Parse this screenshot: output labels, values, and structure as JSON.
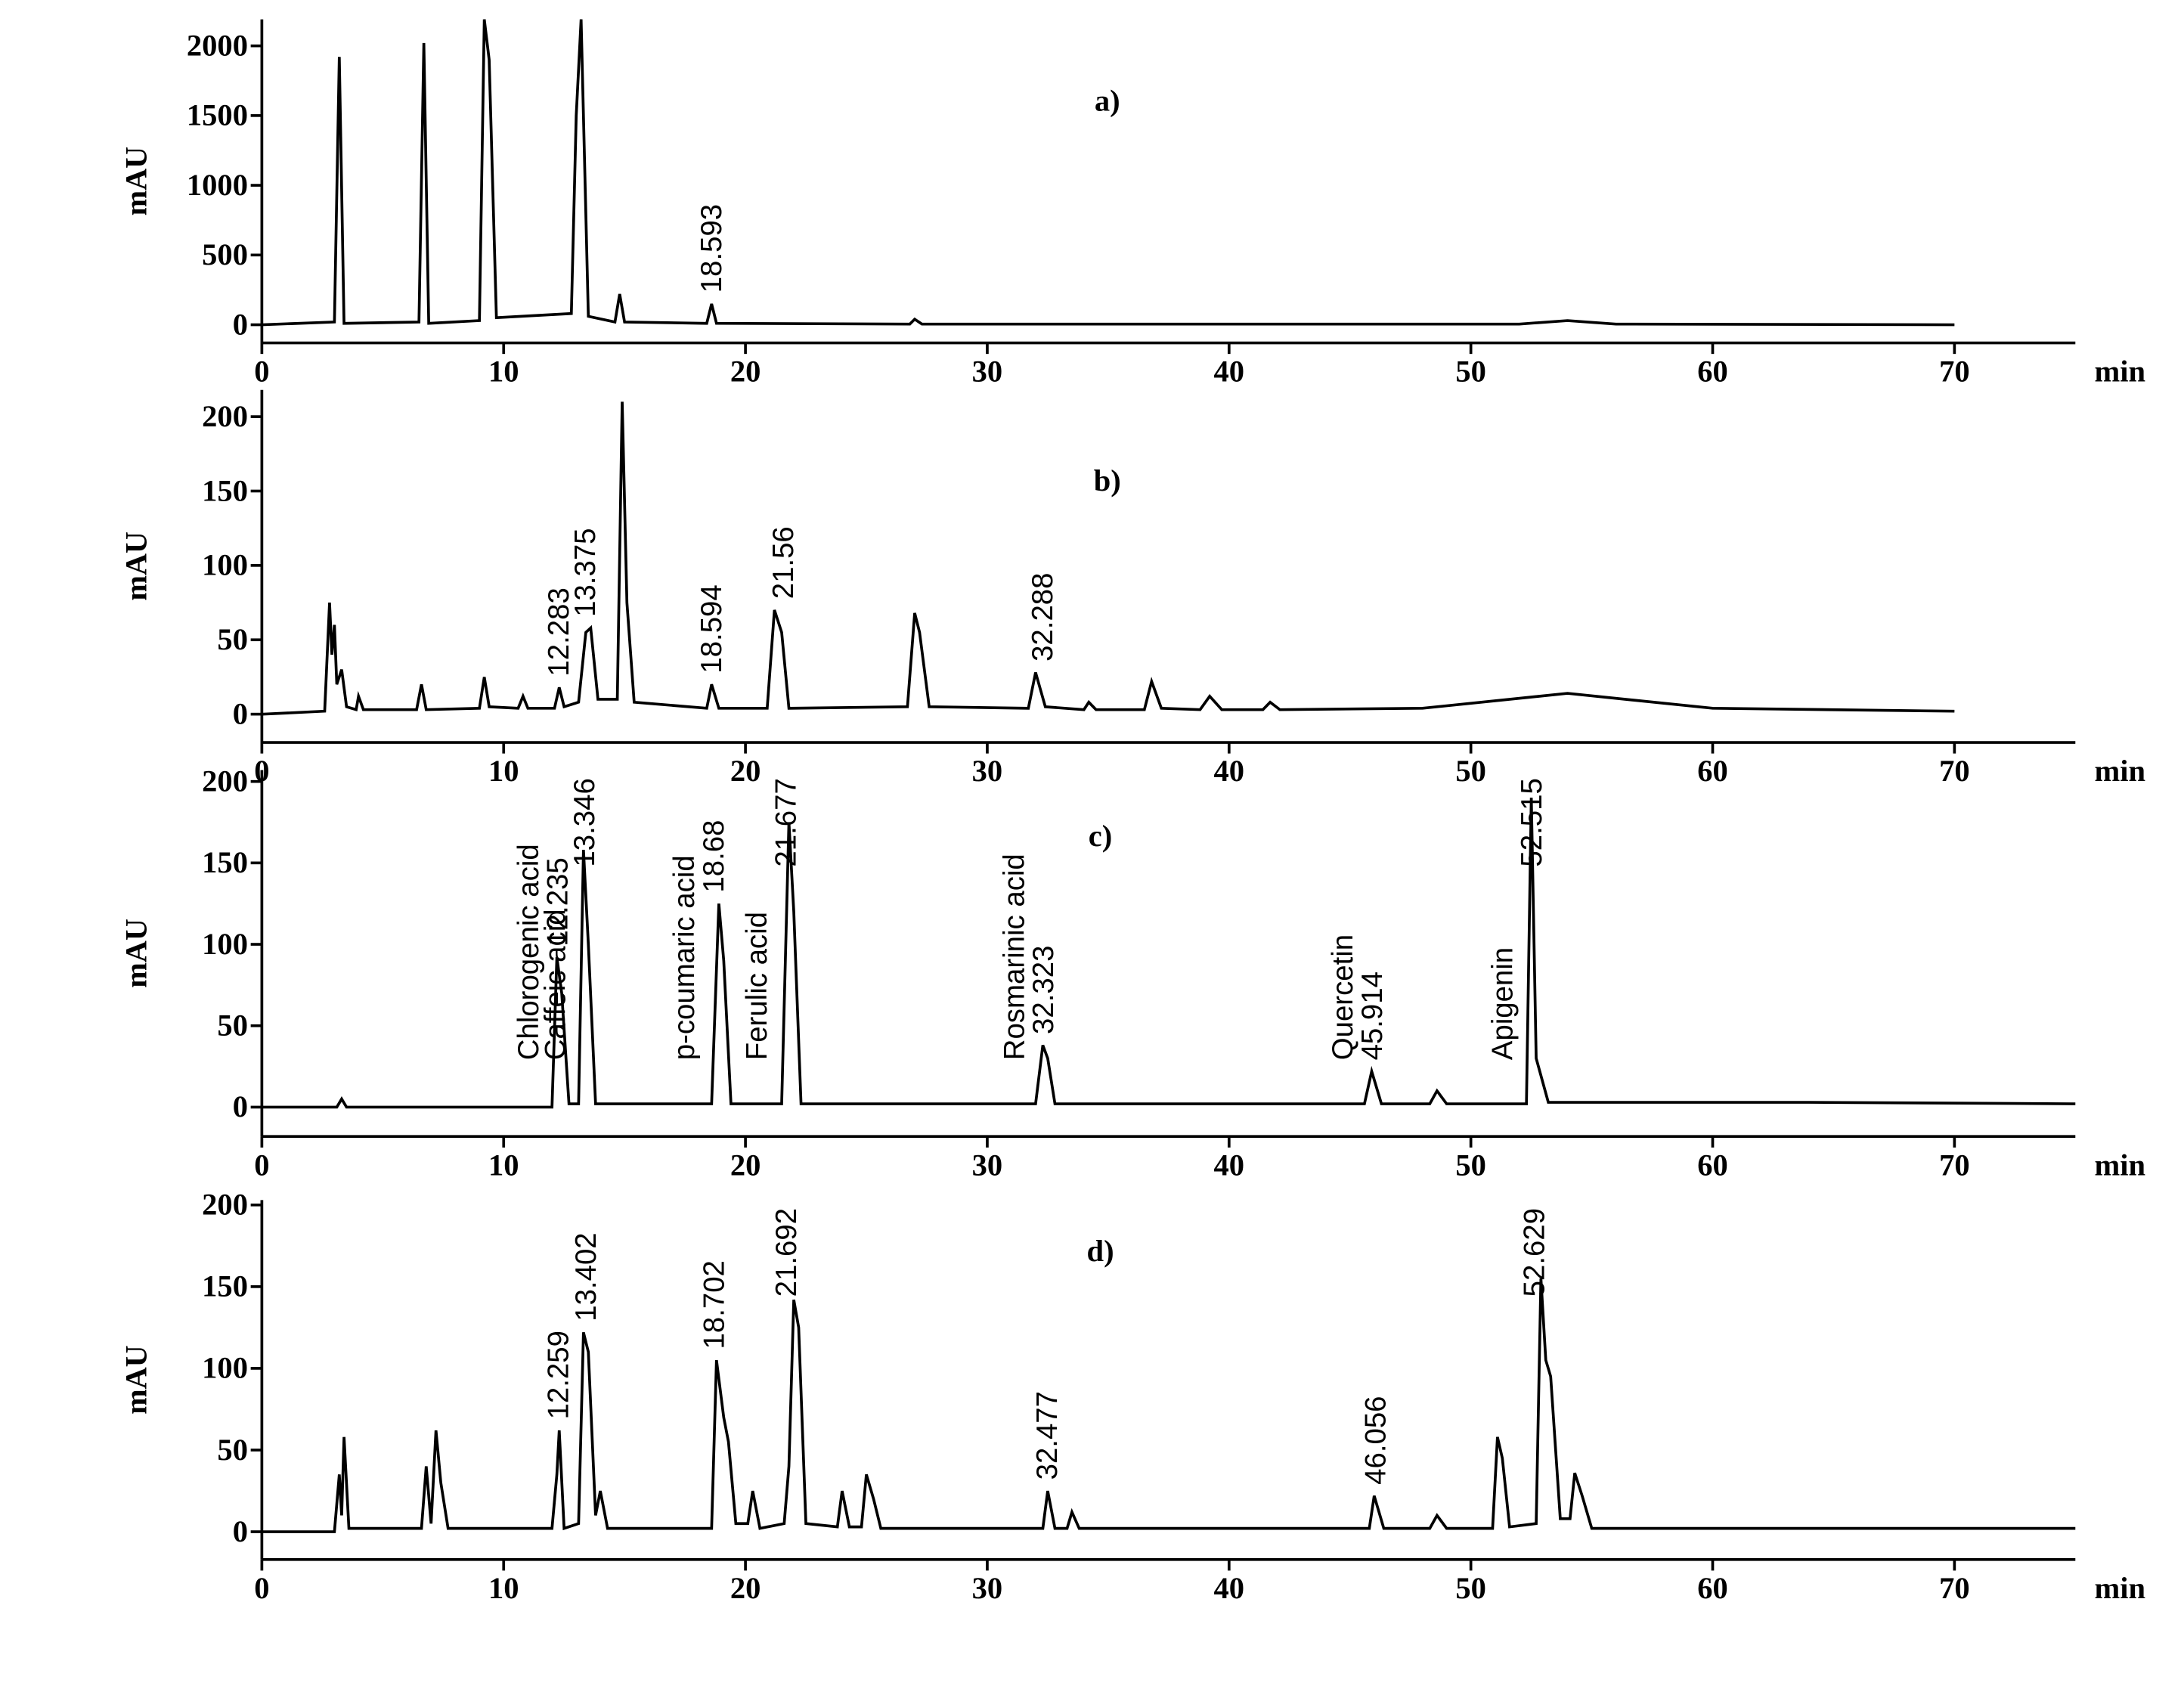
{
  "chart_data": [
    {
      "type": "line",
      "title": "a)",
      "ylabel": "mAU",
      "xlabel": "min",
      "color": "#000000",
      "xlim": [
        0,
        75
      ],
      "ylim": [
        -130,
        2190
      ],
      "xticks": [
        0,
        10,
        20,
        30,
        40,
        50,
        60,
        70
      ],
      "yticks": [
        0,
        500,
        1000,
        1500,
        2000
      ],
      "x": [
        0,
        3.0,
        3.2,
        3.4,
        6.5,
        6.7,
        6.9,
        9.0,
        9.2,
        9.4,
        9.7,
        12.8,
        13.0,
        13.2,
        13.5,
        14.6,
        14.8,
        15.0,
        18.4,
        18.6,
        18.8,
        26.8,
        27.0,
        27.3,
        52,
        54,
        56,
        70
      ],
      "values": [
        0,
        20,
        1920,
        10,
        20,
        2020,
        10,
        30,
        2190,
        1900,
        50,
        80,
        1500,
        2190,
        60,
        20,
        220,
        20,
        10,
        150,
        10,
        5,
        40,
        5,
        5,
        30,
        5,
        0
      ],
      "peak_labels": [
        18.593
      ]
    },
    {
      "type": "line",
      "title": "b)",
      "ylabel": "mAU",
      "xlabel": "min",
      "color": "#000000",
      "xlim": [
        0,
        75
      ],
      "ylim": [
        -19,
        218
      ],
      "xticks": [
        0,
        10,
        20,
        30,
        40,
        50,
        60,
        70
      ],
      "yticks": [
        0,
        50,
        100,
        150,
        200
      ],
      "x": [
        0,
        2.6,
        2.8,
        2.9,
        3.0,
        3.1,
        3.3,
        3.5,
        3.9,
        4.0,
        4.2,
        6.4,
        6.6,
        6.8,
        9.0,
        9.2,
        9.4,
        10.6,
        10.8,
        11.0,
        12.1,
        12.3,
        12.5,
        13.1,
        13.4,
        13.6,
        13.9,
        14.7,
        14.9,
        15.1,
        15.4,
        18.4,
        18.6,
        18.9,
        20.9,
        21.2,
        21.5,
        21.8,
        26.7,
        27.0,
        27.2,
        27.6,
        31.7,
        32.0,
        32.4,
        34.0,
        34.2,
        34.5,
        36.5,
        36.8,
        37.2,
        38.8,
        39.2,
        39.7,
        41.4,
        41.7,
        42.1,
        48,
        54,
        60,
        70
      ],
      "values": [
        0,
        2,
        75,
        40,
        60,
        20,
        30,
        5,
        3,
        12,
        3,
        3,
        20,
        3,
        4,
        25,
        5,
        4,
        12,
        4,
        4,
        18,
        5,
        8,
        55,
        58,
        10,
        10,
        210,
        75,
        8,
        4,
        20,
        4,
        4,
        70,
        55,
        4,
        5,
        68,
        55,
        5,
        4,
        28,
        5,
        3,
        8,
        3,
        3,
        22,
        4,
        3,
        12,
        3,
        3,
        8,
        3,
        4,
        14,
        4,
        2
      ],
      "peak_labels": [
        12.283,
        13.375,
        18.594,
        21.56,
        32.288
      ]
    },
    {
      "type": "line",
      "title": "c)",
      "ylabel": "mAU",
      "xlabel": "min",
      "color": "#000000",
      "xlim": [
        0,
        75
      ],
      "ylim": [
        -18,
        207
      ],
      "xticks": [
        0,
        10,
        20,
        30,
        40,
        50,
        60,
        70
      ],
      "yticks": [
        0,
        50,
        100,
        150,
        200
      ],
      "x": [
        0,
        3.1,
        3.3,
        3.5,
        12.0,
        12.2,
        12.4,
        12.7,
        13.1,
        13.3,
        13.5,
        13.8,
        18.6,
        18.9,
        19.1,
        19.4,
        21.5,
        21.8,
        22.0,
        22.3,
        32.0,
        32.3,
        32.5,
        32.8,
        45.6,
        45.9,
        46.3,
        48.3,
        48.6,
        49.0,
        52.3,
        52.5,
        52.7,
        53.2,
        64,
        75
      ],
      "values": [
        0,
        0,
        5,
        0,
        0,
        92,
        70,
        2,
        2,
        158,
        100,
        2,
        2,
        125,
        90,
        2,
        2,
        175,
        120,
        2,
        2,
        38,
        30,
        2,
        2,
        22,
        2,
        2,
        10,
        2,
        2,
        190,
        30,
        3,
        3,
        2
      ],
      "peak_labels": [
        12.235,
        13.346,
        18.68,
        21.677,
        32.323,
        45.914,
        52.515
      ],
      "compounds": [
        {
          "name": "Chlorogenic acid",
          "rt": 12.235
        },
        {
          "name": "Caffeic acid",
          "rt": 13.346
        },
        {
          "name": "p-coumaric acid",
          "rt": 18.68
        },
        {
          "name": "Ferulic acid",
          "rt": 21.677
        },
        {
          "name": "Rosmarinic acid",
          "rt": 32.323
        },
        {
          "name": "Quercetin",
          "rt": 45.914
        },
        {
          "name": "Apigenin",
          "rt": 52.515
        }
      ]
    },
    {
      "type": "line",
      "title": "d)",
      "ylabel": "mAU",
      "xlabel": "min",
      "color": "#000000",
      "xlim": [
        0,
        75
      ],
      "ylim": [
        -17,
        203
      ],
      "xticks": [
        0,
        10,
        20,
        30,
        40,
        50,
        60,
        70
      ],
      "yticks": [
        0,
        50,
        100,
        150,
        200
      ],
      "x": [
        0,
        3.0,
        3.2,
        3.3,
        3.4,
        3.6,
        6.6,
        6.8,
        7.0,
        7.2,
        7.4,
        7.7,
        12.0,
        12.2,
        12.3,
        12.5,
        13.1,
        13.3,
        13.5,
        13.8,
        14.0,
        14.3,
        18.6,
        18.8,
        19.1,
        19.3,
        19.6,
        20.1,
        20.3,
        20.6,
        21.6,
        21.8,
        22.0,
        22.2,
        22.5,
        23.8,
        24.0,
        24.3,
        24.8,
        25.0,
        25.3,
        25.6,
        32.3,
        32.5,
        32.8,
        33.3,
        33.5,
        33.8,
        45.8,
        46.0,
        46.4,
        48.3,
        48.6,
        49.0,
        50.9,
        51.1,
        51.3,
        51.6,
        52.7,
        52.9,
        53.1,
        53.3,
        53.7,
        54.1,
        54.3,
        54.6,
        55.0,
        56.8,
        75
      ],
      "values": [
        0,
        0,
        35,
        10,
        58,
        2,
        2,
        40,
        5,
        62,
        30,
        2,
        2,
        35,
        62,
        2,
        5,
        122,
        110,
        10,
        25,
        2,
        2,
        105,
        70,
        55,
        5,
        5,
        25,
        2,
        5,
        40,
        142,
        125,
        5,
        3,
        25,
        3,
        3,
        35,
        20,
        2,
        2,
        25,
        2,
        2,
        12,
        2,
        2,
        22,
        2,
        2,
        10,
        2,
        2,
        58,
        45,
        3,
        5,
        155,
        105,
        95,
        8,
        8,
        36,
        22,
        2,
        2,
        2
      ],
      "peak_labels": [
        12.259,
        13.402,
        18.702,
        21.692,
        32.477,
        46.056,
        52.629
      ]
    }
  ]
}
